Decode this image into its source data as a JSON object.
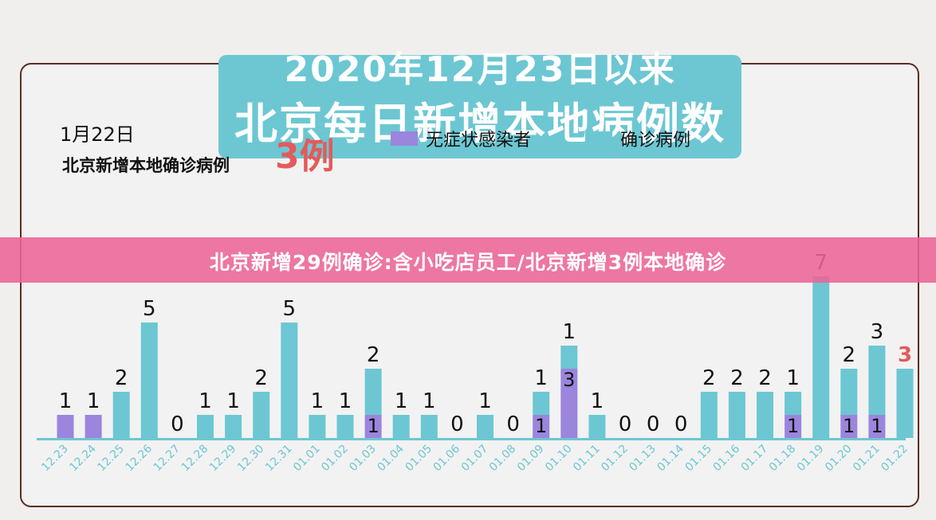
{
  "header": {
    "line1": "2020年12月23日以来",
    "line2": "北京每日新增本地病例数"
  },
  "summary": {
    "date": "1月22日",
    "label": "北京新增本地确诊病例",
    "count": "3例"
  },
  "banner": {
    "text": "北京新增29例确诊:含小吃店员工/北京新增3例本地确诊"
  },
  "colors": {
    "asymptomatic": "#9b85dd",
    "confirmed": "#6cc7d3",
    "highlight": "#e45a5a",
    "axis": "#6cc7d3"
  },
  "chart_data": {
    "type": "bar",
    "stacked": true,
    "categories": [
      "12.23",
      "12.24",
      "12.25",
      "12.26",
      "12.27",
      "12.28",
      "12.29",
      "12.30",
      "12.31",
      "01.01",
      "01.02",
      "01.03",
      "01.04",
      "01.05",
      "01.06",
      "01.07",
      "01.08",
      "01.09",
      "01.10",
      "01.11",
      "01.12",
      "01.13",
      "01.14",
      "01.15",
      "01.16",
      "01.17",
      "01.18",
      "01.19",
      "01.20",
      "01.21",
      "01.22"
    ],
    "series": [
      {
        "name": "无症状感染者",
        "values": [
          1,
          1,
          0,
          0,
          0,
          0,
          0,
          0,
          0,
          0,
          0,
          1,
          0,
          0,
          0,
          0,
          0,
          1,
          3,
          0,
          0,
          0,
          0,
          0,
          0,
          0,
          1,
          0,
          1,
          1,
          0
        ]
      },
      {
        "name": "确诊病例",
        "values": [
          0,
          0,
          2,
          5,
          0,
          1,
          1,
          2,
          5,
          1,
          1,
          2,
          1,
          1,
          0,
          1,
          0,
          1,
          1,
          1,
          0,
          0,
          0,
          2,
          2,
          2,
          1,
          7,
          2,
          3,
          3
        ]
      }
    ],
    "top_labels": [
      "1",
      "1",
      "2",
      "5",
      "0",
      "1",
      "1",
      "2",
      "5",
      "1",
      "1",
      "2",
      "1",
      "1",
      "0",
      "1",
      "0",
      "1",
      "1",
      "1",
      "0",
      "0",
      "0",
      "2",
      "2",
      "2",
      "1",
      "7",
      "2",
      "3",
      "3"
    ],
    "inner_labels": [
      "",
      "",
      "",
      "",
      "",
      "",
      "",
      "",
      "",
      "",
      "",
      "1",
      "",
      "",
      "",
      "",
      "",
      "1",
      "3",
      "",
      "",
      "",
      "",
      "",
      "",
      "",
      "1",
      "",
      "1",
      "1",
      ""
    ],
    "highlight_last": true
  }
}
